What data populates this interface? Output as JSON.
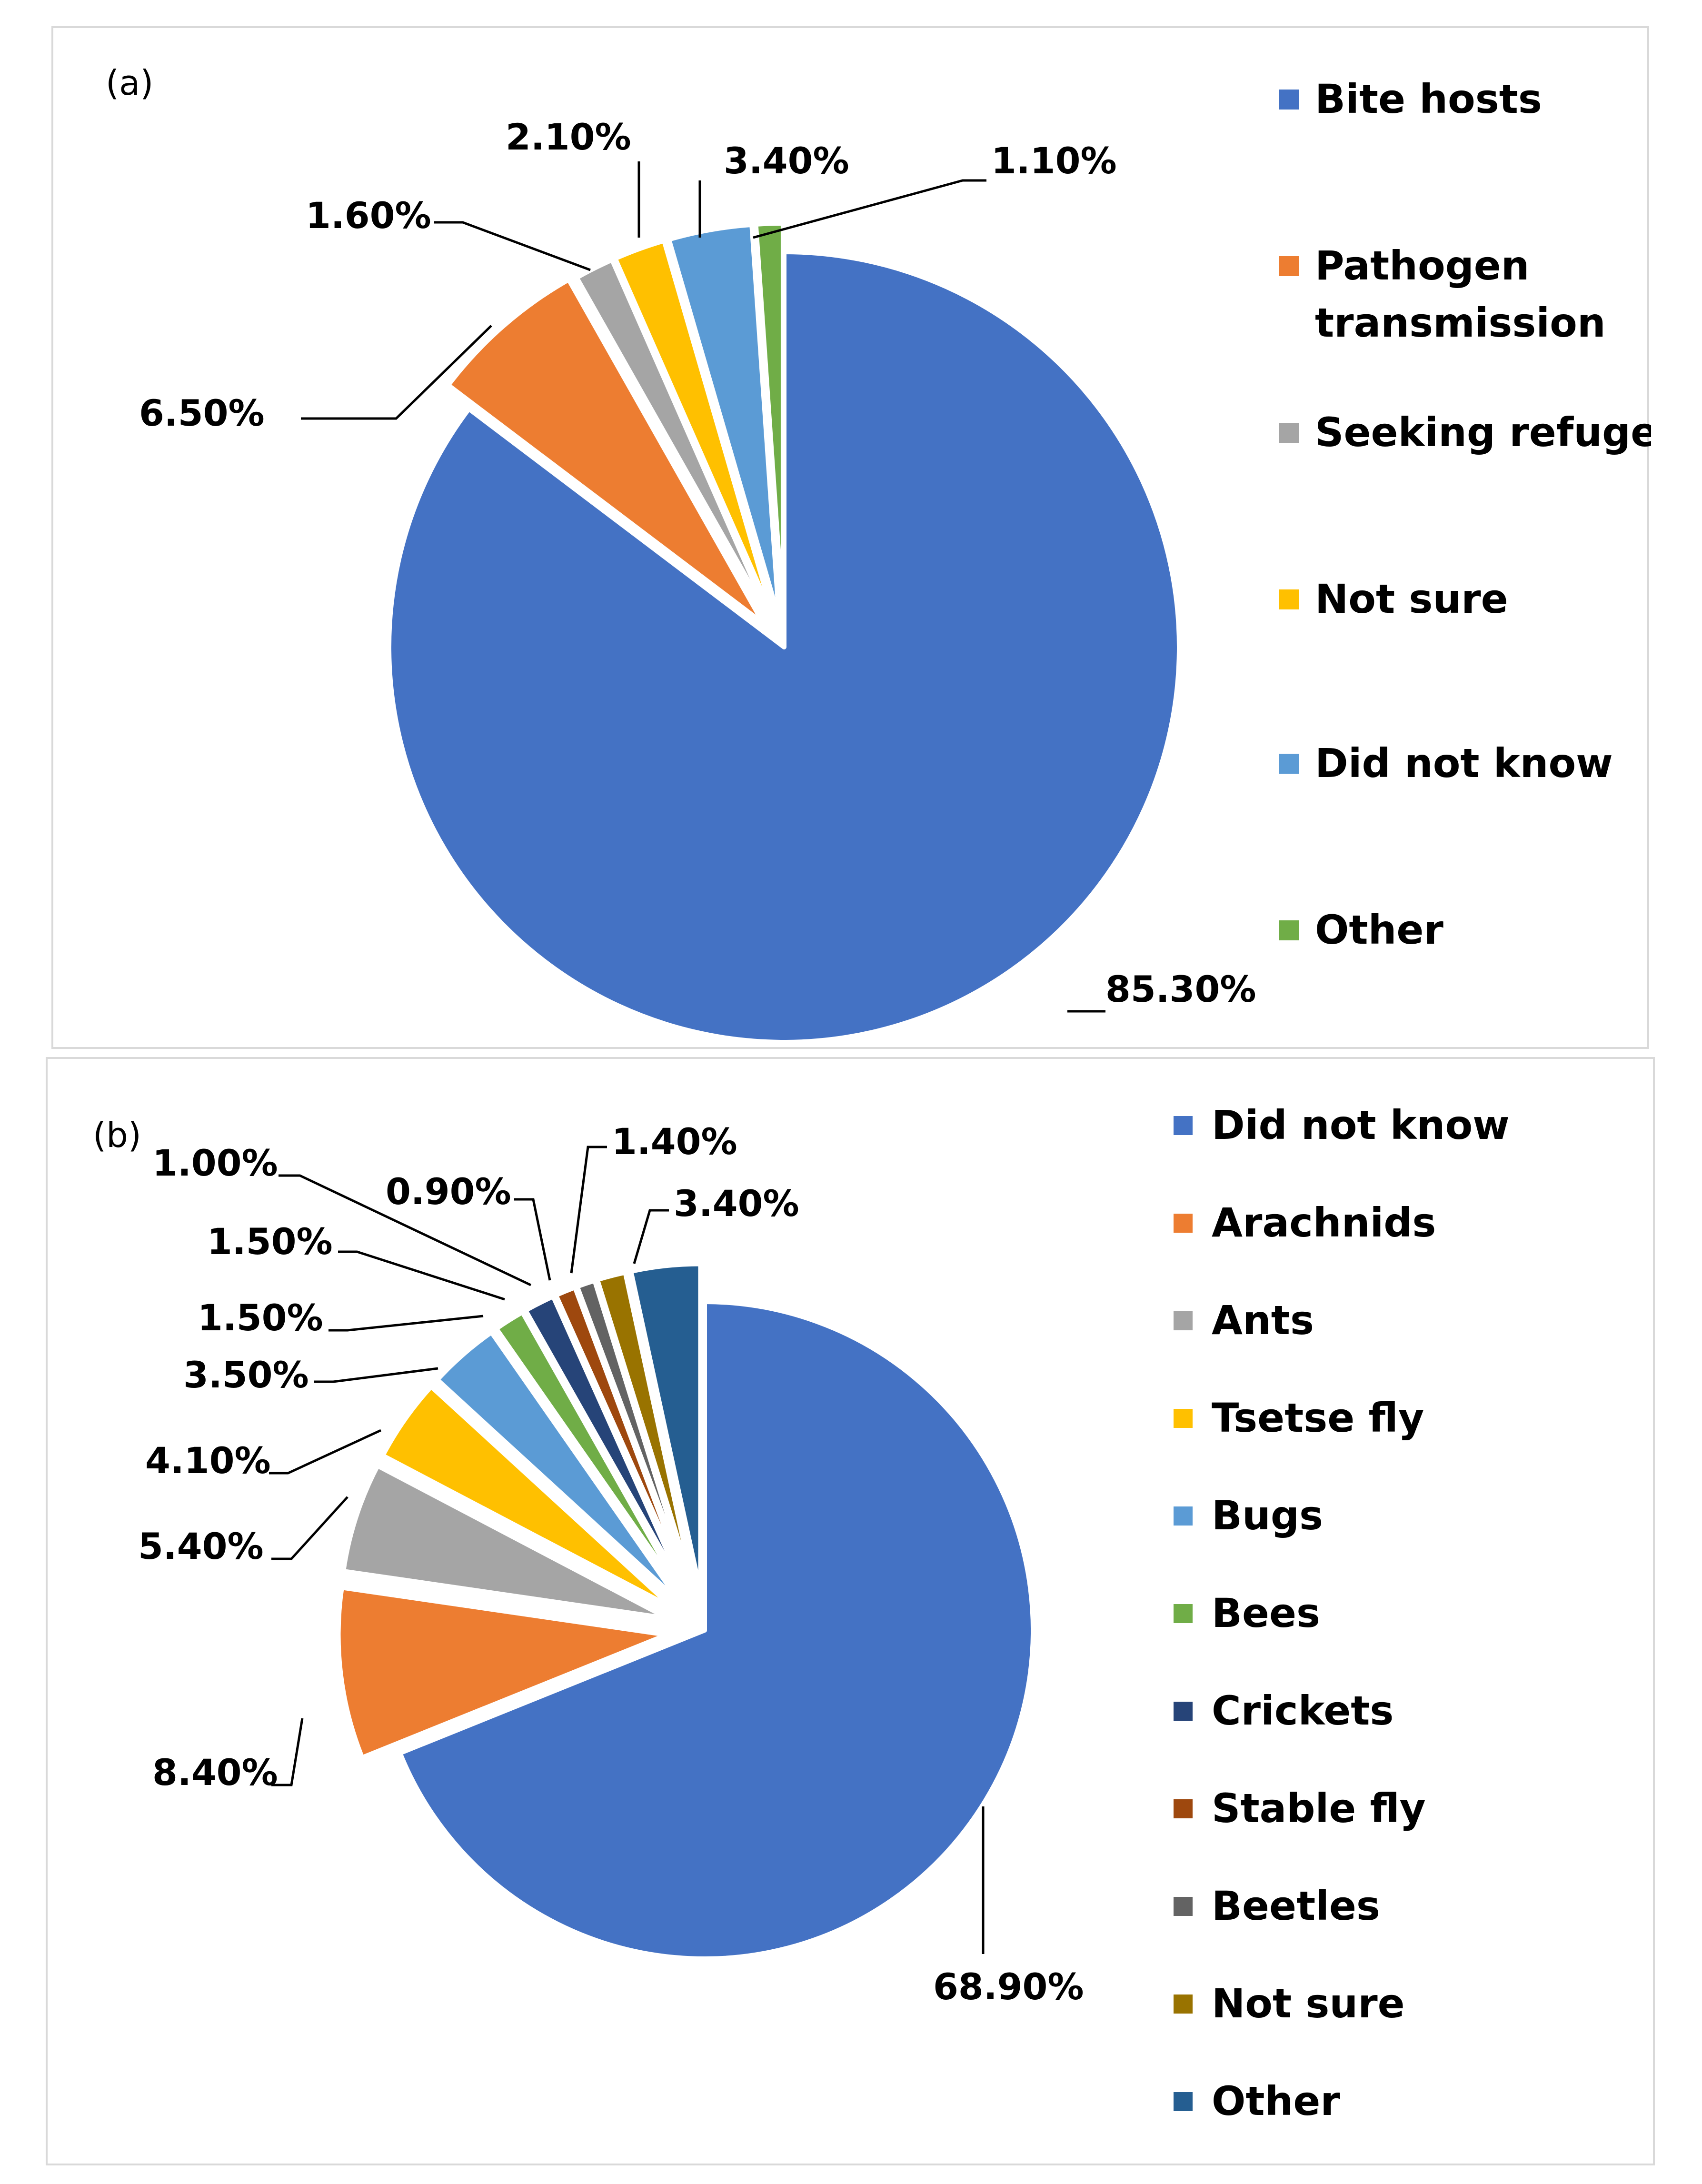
{
  "chart_data": [
    {
      "type": "pie",
      "panel_label": "(a)",
      "title": "",
      "legend_position": "right",
      "slices": [
        {
          "name": "Bite hosts",
          "value": 85.3,
          "label": "85.30%",
          "color": "#4472C4",
          "legend_lines": [
            "Bite hosts"
          ]
        },
        {
          "name": "Pathogen transmission",
          "value": 6.5,
          "label": "6.50%",
          "color": "#ED7D31",
          "legend_lines": [
            "Pathogen",
            "transmission"
          ]
        },
        {
          "name": "Seeking refuge",
          "value": 1.6,
          "label": "1.60%",
          "color": "#A5A5A5",
          "legend_lines": [
            "Seeking refuge"
          ]
        },
        {
          "name": "Not sure",
          "value": 2.1,
          "label": "2.10%",
          "color": "#FFC000",
          "legend_lines": [
            "Not sure"
          ]
        },
        {
          "name": "Did not know",
          "value": 3.4,
          "label": "3.40%",
          "color": "#5B9BD5",
          "legend_lines": [
            "Did not know"
          ]
        },
        {
          "name": "Other",
          "value": 1.1,
          "label": "1.10%",
          "color": "#70AD47",
          "legend_lines": [
            "Other"
          ]
        }
      ]
    },
    {
      "type": "pie",
      "panel_label": "(b)",
      "title": "",
      "legend_position": "right",
      "slices": [
        {
          "name": "Did not know",
          "value": 68.9,
          "label": "68.90%",
          "color": "#4472C4",
          "legend_lines": [
            "Did not know"
          ]
        },
        {
          "name": "Arachnids",
          "value": 8.4,
          "label": "8.40%",
          "color": "#ED7D31",
          "legend_lines": [
            "Arachnids"
          ]
        },
        {
          "name": "Ants",
          "value": 5.4,
          "label": "5.40%",
          "color": "#A5A5A5",
          "legend_lines": [
            "Ants"
          ]
        },
        {
          "name": "Tsetse fly",
          "value": 4.1,
          "label": "4.10%",
          "color": "#FFC000",
          "legend_lines": [
            "Tsetse fly"
          ]
        },
        {
          "name": "Bugs",
          "value": 3.5,
          "label": "3.50%",
          "color": "#5B9BD5",
          "legend_lines": [
            "Bugs"
          ]
        },
        {
          "name": "Bees",
          "value": 1.5,
          "label": "1.50%",
          "color": "#70AD47",
          "legend_lines": [
            "Bees"
          ]
        },
        {
          "name": "Crickets",
          "value": 1.5,
          "label": "1.50%",
          "color": "#264478",
          "legend_lines": [
            "Crickets"
          ]
        },
        {
          "name": "Stable fly",
          "value": 1.0,
          "label": "1.00%",
          "color": "#9E480E",
          "legend_lines": [
            "Stable fly"
          ]
        },
        {
          "name": "Beetles",
          "value": 0.9,
          "label": "0.90%",
          "color": "#636363",
          "legend_lines": [
            "Beetles"
          ]
        },
        {
          "name": "Not sure",
          "value": 1.4,
          "label": "1.40%",
          "color": "#997300",
          "legend_lines": [
            "Not sure"
          ]
        },
        {
          "name": "Other",
          "value": 3.4,
          "label": "3.40%",
          "color": "#255E91",
          "legend_lines": [
            "Other"
          ]
        }
      ]
    }
  ]
}
